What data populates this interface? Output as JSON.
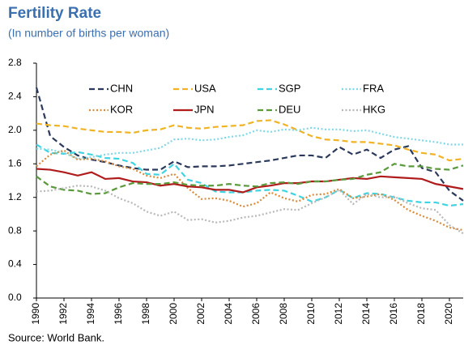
{
  "chart_data": {
    "type": "line",
    "title": "Fertility Rate",
    "subtitle": "(In number of births per woman)",
    "source": "Source: World Bank.",
    "x": [
      1990,
      1991,
      1992,
      1993,
      1994,
      1995,
      1996,
      1997,
      1998,
      1999,
      2000,
      2001,
      2002,
      2003,
      2004,
      2005,
      2006,
      2007,
      2008,
      2009,
      2010,
      2011,
      2012,
      2013,
      2014,
      2015,
      2016,
      2017,
      2018,
      2019,
      2020,
      2021
    ],
    "xlim": [
      1990,
      2021
    ],
    "xticks": [
      1990,
      1992,
      1994,
      1996,
      1998,
      2000,
      2002,
      2004,
      2006,
      2008,
      2010,
      2012,
      2014,
      2016,
      2018,
      2020
    ],
    "ylim": [
      0,
      2.8
    ],
    "yticks": [
      {
        "value": 0,
        "label": "0.0"
      },
      0.4,
      0.8,
      1.2,
      1.6,
      {
        "value": 2,
        "label": "2.0"
      },
      2.4,
      2.8
    ],
    "grid": false,
    "series": [
      {
        "name": "CHN",
        "color": "#2b3a5c",
        "dash": "dashed",
        "values": [
          2.51,
          1.93,
          1.8,
          1.7,
          1.65,
          1.62,
          1.58,
          1.55,
          1.53,
          1.53,
          1.63,
          1.56,
          1.57,
          1.57,
          1.58,
          1.6,
          1.62,
          1.64,
          1.67,
          1.7,
          1.7,
          1.67,
          1.8,
          1.71,
          1.77,
          1.67,
          1.77,
          1.81,
          1.55,
          1.5,
          1.28,
          1.16
        ]
      },
      {
        "name": "USA",
        "color": "#f0b323",
        "dash": "dashed",
        "values": [
          2.08,
          2.06,
          2.05,
          2.02,
          2.0,
          1.98,
          1.98,
          1.97,
          2.0,
          2.01,
          2.06,
          2.03,
          2.02,
          2.04,
          2.05,
          2.06,
          2.11,
          2.12,
          2.07,
          2.0,
          1.93,
          1.89,
          1.88,
          1.86,
          1.86,
          1.84,
          1.82,
          1.77,
          1.73,
          1.71,
          1.64,
          1.66
        ]
      },
      {
        "name": "SGP",
        "color": "#3fd4e0",
        "dash": "dashed",
        "values": [
          1.83,
          1.73,
          1.72,
          1.74,
          1.71,
          1.67,
          1.66,
          1.61,
          1.48,
          1.47,
          1.6,
          1.41,
          1.37,
          1.27,
          1.26,
          1.26,
          1.28,
          1.29,
          1.28,
          1.22,
          1.15,
          1.2,
          1.29,
          1.19,
          1.25,
          1.24,
          1.2,
          1.16,
          1.14,
          1.14,
          1.1,
          1.12
        ]
      },
      {
        "name": "FRA",
        "color": "#7fd8e6",
        "dash": "dotted",
        "values": [
          1.78,
          1.77,
          1.73,
          1.66,
          1.68,
          1.71,
          1.73,
          1.73,
          1.76,
          1.79,
          1.89,
          1.9,
          1.88,
          1.89,
          1.92,
          1.94,
          2.0,
          1.98,
          2.01,
          2.0,
          2.03,
          2.01,
          2.01,
          1.99,
          2.0,
          1.96,
          1.92,
          1.9,
          1.88,
          1.86,
          1.83,
          1.83
        ]
      },
      {
        "name": "KOR",
        "color": "#d98a3a",
        "dash": "dotted",
        "values": [
          1.57,
          1.71,
          1.76,
          1.65,
          1.66,
          1.63,
          1.57,
          1.54,
          1.46,
          1.43,
          1.48,
          1.31,
          1.18,
          1.19,
          1.16,
          1.09,
          1.13,
          1.26,
          1.19,
          1.15,
          1.23,
          1.24,
          1.3,
          1.19,
          1.21,
          1.24,
          1.17,
          1.05,
          0.98,
          0.92,
          0.84,
          0.81
        ]
      },
      {
        "name": "JPN",
        "color": "#b01c1c",
        "dash": "solid",
        "values": [
          1.54,
          1.53,
          1.5,
          1.46,
          1.5,
          1.42,
          1.43,
          1.39,
          1.38,
          1.34,
          1.36,
          1.33,
          1.32,
          1.29,
          1.29,
          1.26,
          1.32,
          1.34,
          1.37,
          1.37,
          1.39,
          1.39,
          1.41,
          1.43,
          1.42,
          1.45,
          1.44,
          1.43,
          1.42,
          1.36,
          1.33,
          1.3
        ]
      },
      {
        "name": "DEU",
        "color": "#5a9a3c",
        "dash": "dashed",
        "values": [
          1.45,
          1.33,
          1.29,
          1.28,
          1.24,
          1.25,
          1.32,
          1.37,
          1.36,
          1.36,
          1.38,
          1.35,
          1.34,
          1.34,
          1.36,
          1.34,
          1.33,
          1.37,
          1.38,
          1.36,
          1.39,
          1.39,
          1.41,
          1.42,
          1.47,
          1.5,
          1.6,
          1.57,
          1.57,
          1.54,
          1.53,
          1.58
        ]
      },
      {
        "name": "HKG",
        "color": "#b8b8b8",
        "dash": "dotted",
        "values": [
          1.27,
          1.28,
          1.31,
          1.34,
          1.33,
          1.28,
          1.19,
          1.13,
          1.03,
          0.98,
          1.03,
          0.93,
          0.94,
          0.9,
          0.92,
          0.96,
          0.98,
          1.02,
          1.06,
          1.05,
          1.13,
          1.2,
          1.29,
          1.12,
          1.24,
          1.2,
          1.21,
          1.13,
          1.07,
          1.05,
          0.87,
          0.77
        ]
      }
    ]
  }
}
